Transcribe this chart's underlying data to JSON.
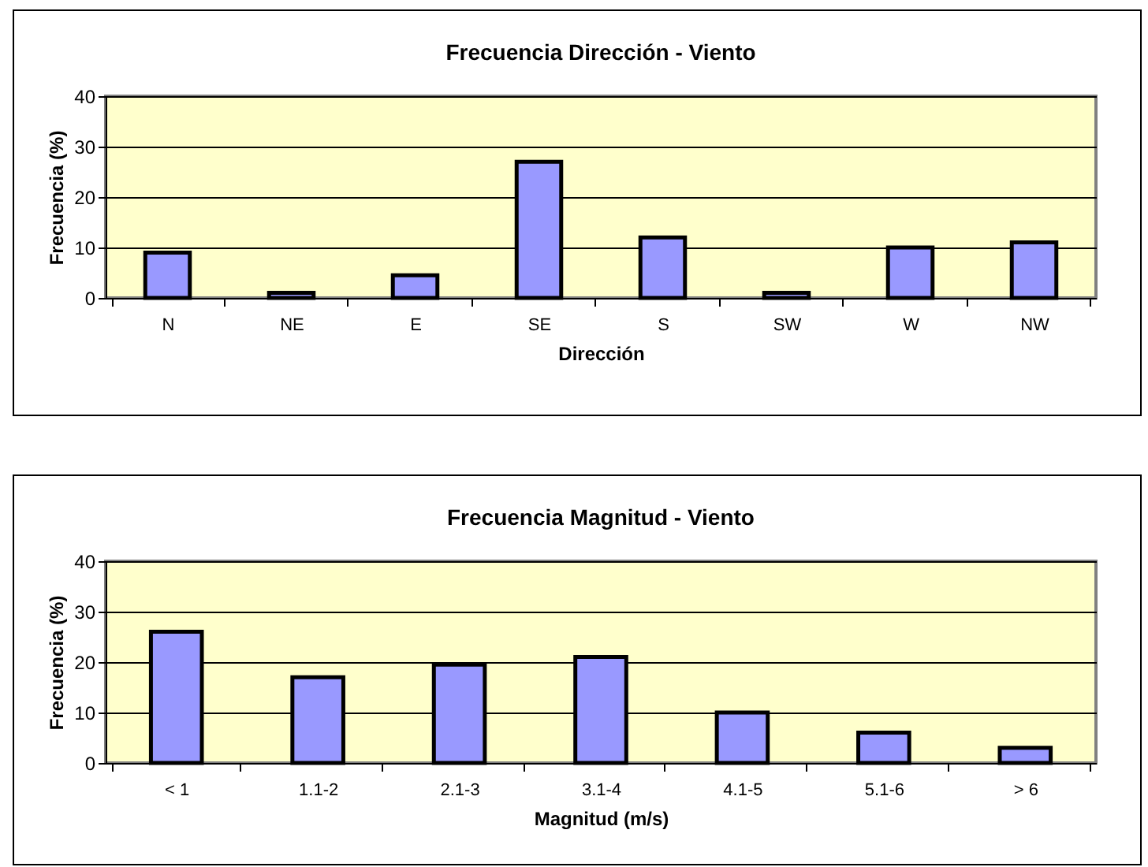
{
  "chart_data": [
    {
      "type": "bar",
      "title": "Frecuencia Dirección - Viento",
      "xlabel": "Dirección",
      "ylabel": "Frecuencia (%)",
      "categories": [
        "N",
        "NE",
        "E",
        "SE",
        "S",
        "SW",
        "W",
        "NW"
      ],
      "values": [
        9,
        1,
        4.5,
        27,
        12,
        1,
        10,
        11
      ],
      "color": "#9999ff",
      "ylim": [
        0,
        40
      ],
      "yticks": [
        0,
        10,
        20,
        30,
        40
      ],
      "grid": "y"
    },
    {
      "type": "bar",
      "title": "Frecuencia Magnitud - Viento",
      "xlabel": "Magnitud (m/s)",
      "ylabel": "Frecuencia (%)",
      "categories": [
        "< 1",
        "1.1-2",
        "2.1-3",
        "3.1-4",
        "4.1-5",
        "5.1-6",
        "> 6"
      ],
      "values": [
        26,
        17,
        19.5,
        21,
        10,
        6,
        3
      ],
      "color": "#9999ff",
      "ylim": [
        0,
        40
      ],
      "yticks": [
        0,
        10,
        20,
        30,
        40
      ],
      "grid": "y"
    }
  ]
}
